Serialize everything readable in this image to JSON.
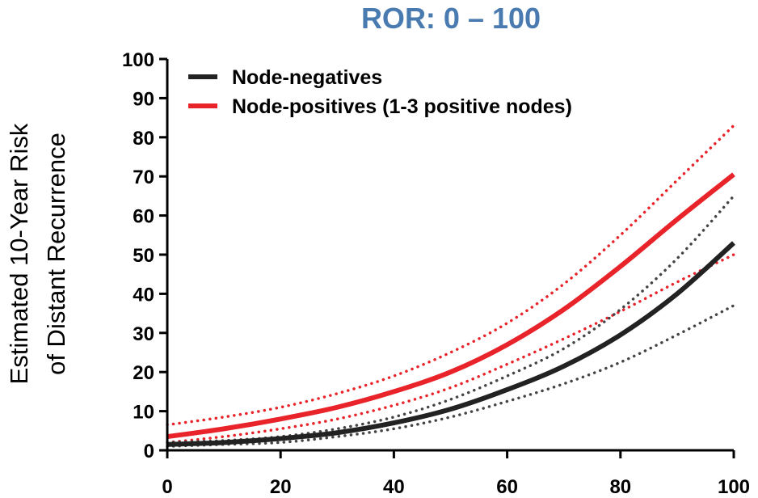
{
  "chart_data": {
    "type": "line",
    "title": "ROR: 0 – 100",
    "xlabel": "",
    "ylabel_lines": [
      "Estimated 10-Year Risk",
      "of Distant Recurrence"
    ],
    "xlim": [
      0,
      100
    ],
    "ylim": [
      0,
      100
    ],
    "x_ticks": [
      0,
      20,
      40,
      60,
      80,
      100
    ],
    "y_ticks": [
      0,
      10,
      20,
      30,
      40,
      50,
      60,
      70,
      80,
      90,
      100
    ],
    "grid": false,
    "legend_position": "top-left",
    "colors": {
      "title": "#4a7bb0",
      "node_negatives": "#222222",
      "node_positives": "#e8232a"
    },
    "x": [
      0,
      10,
      20,
      30,
      40,
      50,
      60,
      70,
      80,
      90,
      100
    ],
    "series": [
      {
        "name": "Node-negatives",
        "legend": true,
        "style": "solid",
        "color": "#222222",
        "values": [
          1.5,
          2,
          3,
          4.5,
          7,
          10.5,
          15.5,
          21.5,
          29.5,
          40,
          53
        ]
      },
      {
        "name": "Node-positives (1-3 positive nodes)",
        "legend": true,
        "style": "solid",
        "color": "#e8232a",
        "values": [
          3.5,
          5.5,
          8,
          11,
          15,
          20,
          27,
          36,
          47,
          59,
          70.5
        ]
      },
      {
        "legend": false,
        "style": "dotted",
        "color": "#e8232a",
        "values": [
          6.5,
          8.5,
          11,
          14.5,
          19,
          25,
          32.5,
          42.5,
          55,
          69,
          83
        ]
      },
      {
        "legend": false,
        "style": "dotted",
        "color": "#e8232a",
        "values": [
          2,
          3.5,
          5.5,
          8,
          11.5,
          16,
          22,
          28.5,
          35.5,
          43,
          50
        ]
      },
      {
        "legend": false,
        "style": "dotted",
        "color": "#444444",
        "values": [
          2,
          2.5,
          3.5,
          5.5,
          8.5,
          13,
          19,
          26,
          36,
          49,
          65
        ]
      },
      {
        "legend": false,
        "style": "dotted",
        "color": "#444444",
        "values": [
          1,
          1.5,
          2,
          3.5,
          5.5,
          8.5,
          12.5,
          17,
          22.5,
          29.5,
          37
        ]
      }
    ]
  }
}
